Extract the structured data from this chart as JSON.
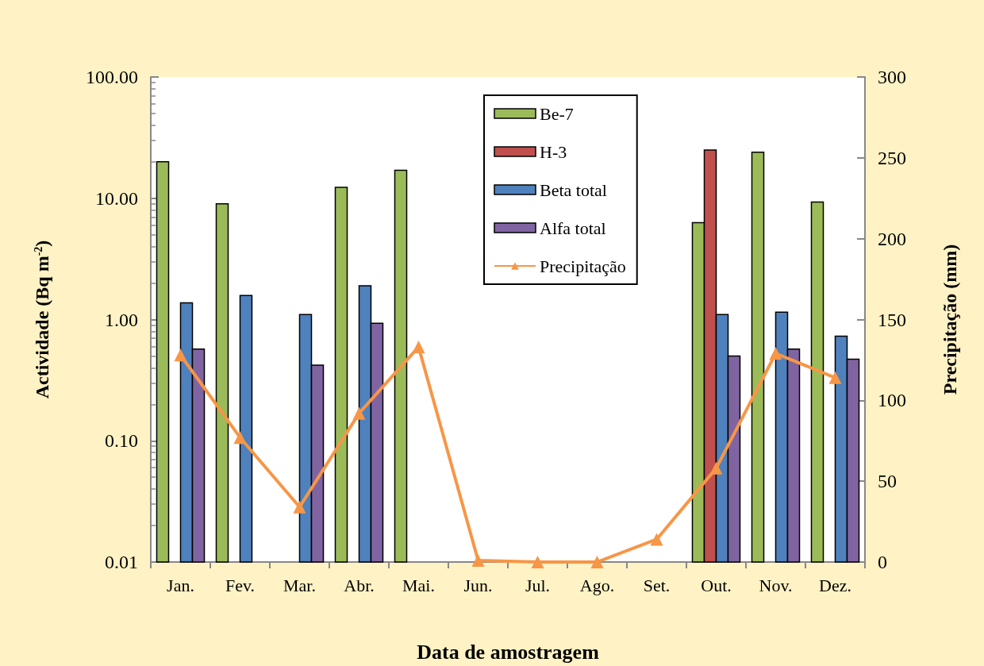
{
  "chart_data": {
    "type": "bar",
    "xlabel": "Data de amostragem",
    "ylabel": "Actividade (Bq m$^{-2}$)",
    "y2label": "Precipitação (mm)",
    "categories": [
      "Jan.",
      "Fev.",
      "Mar.",
      "Abr.",
      "Mai.",
      "Jun.",
      "Jul.",
      "Ago.",
      "Set.",
      "Out.",
      "Nov.",
      "Dez."
    ],
    "log": "y",
    "grid": false,
    "legend": "top",
    "ylim": [
      0.01,
      100
    ],
    "yticks": [
      {
        "value": 0.01,
        "label": "0.01"
      },
      {
        "value": 0.1,
        "label": "0.10"
      },
      {
        "value": 1,
        "label": "1.00"
      },
      {
        "value": 10,
        "label": "10.00"
      },
      {
        "value": 100,
        "label": "100.00"
      }
    ],
    "y2lim": [
      0,
      300
    ],
    "y2ticks": [
      0,
      50,
      100,
      150,
      200,
      250,
      300
    ],
    "series": [
      {
        "name": "Be-7",
        "color": "#9bbb59",
        "values": [
          20,
          9,
          null,
          12.3,
          17,
          null,
          null,
          null,
          null,
          6.3,
          24,
          9.3
        ]
      },
      {
        "name": "H-3",
        "color": "#c0504d",
        "values": [
          null,
          null,
          null,
          null,
          null,
          null,
          null,
          null,
          null,
          25,
          null,
          null
        ]
      },
      {
        "name": "Beta total",
        "color": "#4f81bd",
        "values": [
          1.37,
          1.58,
          1.1,
          1.9,
          null,
          null,
          null,
          null,
          null,
          1.1,
          1.15,
          0.73
        ]
      },
      {
        "name": "Alfa total",
        "color": "#8064a2",
        "values": [
          0.57,
          null,
          0.42,
          0.93,
          null,
          null,
          null,
          null,
          null,
          0.5,
          0.57,
          0.47
        ]
      },
      {
        "name": "Precipitação",
        "type": "line",
        "axis": "y2",
        "color": "#f79646",
        "marker": "triangle",
        "line_style": "solid",
        "values": [
          128,
          77,
          34,
          92,
          133,
          1,
          0,
          0,
          14,
          58,
          129,
          114
        ]
      }
    ]
  }
}
